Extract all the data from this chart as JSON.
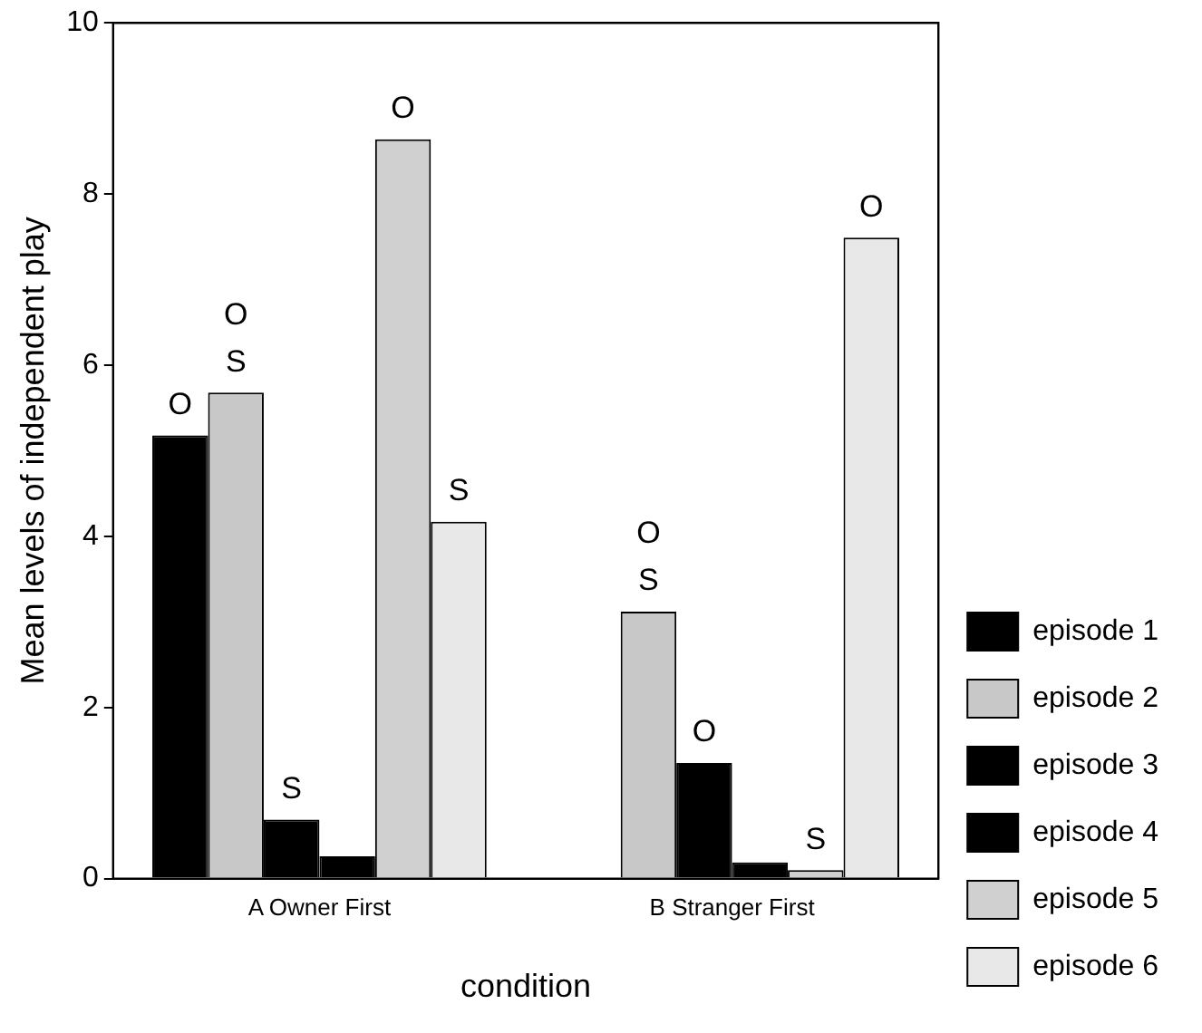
{
  "chart_data": {
    "type": "bar",
    "xlabel": "condition",
    "ylabel": "Mean levels of independent play",
    "categories": [
      "A Owner First",
      "B Stranger First"
    ],
    "series": [
      {
        "name": "episode 1",
        "color": "#000000",
        "values": [
          5.18,
          0
        ],
        "value_labels": [
          "O",
          null
        ]
      },
      {
        "name": "episode 2",
        "color": "#c8c8c8",
        "values": [
          5.68,
          3.12
        ],
        "value_labels": [
          "O\nS",
          "O\nS"
        ]
      },
      {
        "name": "episode 3",
        "color": "#000000",
        "values": [
          0.69,
          1.35
        ],
        "value_labels": [
          "S",
          "O"
        ]
      },
      {
        "name": "episode 4",
        "color": "#000000",
        "values": [
          0.26,
          0.19
        ],
        "value_labels": [
          null,
          null
        ]
      },
      {
        "name": "episode 5",
        "color": "#d0d0d0",
        "values": [
          8.64,
          0.1
        ],
        "value_labels": [
          "O",
          "S"
        ]
      },
      {
        "name": "episode 6",
        "color": "#e8e8e8",
        "values": [
          4.17,
          7.49
        ],
        "value_labels": [
          "S",
          "O"
        ]
      }
    ],
    "ylim": [
      0,
      10
    ],
    "yticks": [
      0,
      2,
      4,
      6,
      8,
      10
    ],
    "grid": false,
    "legend": "bottom right"
  }
}
